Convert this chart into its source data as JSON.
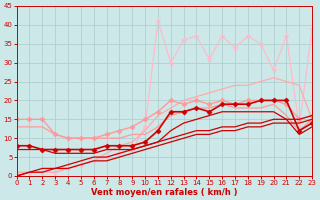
{
  "background_color": "#cde8e8",
  "grid_color": "#aacccc",
  "xlabel": "Vent moyen/en rafales ( km/h )",
  "xlabel_color": "#cc0000",
  "tick_color": "#cc0000",
  "xlim": [
    0,
    23
  ],
  "ylim": [
    0,
    45
  ],
  "yticks": [
    0,
    5,
    10,
    15,
    20,
    25,
    30,
    35,
    40,
    45
  ],
  "xticks": [
    0,
    1,
    2,
    3,
    4,
    5,
    6,
    7,
    8,
    9,
    10,
    11,
    12,
    13,
    14,
    15,
    16,
    17,
    18,
    19,
    20,
    21,
    22,
    23
  ],
  "series": [
    {
      "x": [
        0,
        1,
        2,
        3,
        4,
        5,
        6,
        7,
        8,
        9,
        10,
        11,
        12,
        13,
        14,
        15,
        16,
        17,
        18,
        19,
        20,
        21,
        22,
        23
      ],
      "y": [
        1,
        1,
        1,
        1,
        2,
        3,
        4,
        5,
        6,
        7,
        13,
        41,
        30,
        36,
        37,
        31,
        37,
        34,
        37,
        35,
        28,
        37,
        13,
        39
      ],
      "color": "#ffbbcc",
      "lw": 0.9,
      "marker": "*",
      "ms": 3.5
    },
    {
      "x": [
        0,
        1,
        2,
        3,
        4,
        5,
        6,
        7,
        8,
        9,
        10,
        11,
        12,
        13,
        14,
        15,
        16,
        17,
        18,
        19,
        20,
        21,
        22,
        23
      ],
      "y": [
        1,
        1,
        1,
        1,
        2,
        3,
        4,
        6,
        8,
        9,
        12,
        16,
        18,
        20,
        21,
        22,
        23,
        24,
        24,
        25,
        26,
        25,
        24,
        15
      ],
      "color": "#ffaaaa",
      "lw": 0.9,
      "marker": null,
      "ms": 2
    },
    {
      "x": [
        0,
        1,
        2,
        3,
        4,
        5,
        6,
        7,
        8,
        9,
        10,
        11,
        12,
        13,
        14,
        15,
        16,
        17,
        18,
        19,
        20,
        21,
        22,
        23
      ],
      "y": [
        15,
        15,
        15,
        11,
        10,
        10,
        10,
        11,
        12,
        13,
        15,
        17,
        20,
        19,
        20,
        19,
        20,
        19,
        20,
        20,
        20,
        19,
        15,
        16
      ],
      "color": "#ff9999",
      "lw": 1.0,
      "marker": "D",
      "ms": 2.5
    },
    {
      "x": [
        0,
        1,
        2,
        3,
        4,
        5,
        6,
        7,
        8,
        9,
        10,
        11,
        12,
        13,
        14,
        15,
        16,
        17,
        18,
        19,
        20,
        21,
        22,
        23
      ],
      "y": [
        13,
        13,
        13,
        11,
        10,
        10,
        10,
        10,
        10,
        11,
        11,
        13,
        16,
        17,
        18,
        18,
        19,
        18,
        18,
        18,
        19,
        16,
        12,
        15
      ],
      "color": "#ff9999",
      "lw": 0.9,
      "marker": null,
      "ms": 2
    },
    {
      "x": [
        0,
        1,
        2,
        3,
        4,
        5,
        6,
        7,
        8,
        9,
        10,
        11,
        12,
        13,
        14,
        15,
        16,
        17,
        18,
        19,
        20,
        21,
        22,
        23
      ],
      "y": [
        8,
        8,
        7,
        7,
        7,
        7,
        7,
        8,
        8,
        8,
        9,
        12,
        17,
        17,
        18,
        17,
        19,
        19,
        19,
        20,
        20,
        20,
        12,
        14
      ],
      "color": "#cc0000",
      "lw": 1.2,
      "marker": "D",
      "ms": 2.5
    },
    {
      "x": [
        0,
        1,
        2,
        3,
        4,
        5,
        6,
        7,
        8,
        9,
        10,
        11,
        12,
        13,
        14,
        15,
        16,
        17,
        18,
        19,
        20,
        21,
        22,
        23
      ],
      "y": [
        7,
        7,
        7,
        6,
        6,
        6,
        6,
        7,
        7,
        7,
        8,
        9,
        12,
        14,
        15,
        16,
        17,
        17,
        17,
        17,
        17,
        15,
        11,
        13
      ],
      "color": "#cc0000",
      "lw": 0.9,
      "marker": null,
      "ms": 2
    },
    {
      "x": [
        0,
        1,
        2,
        3,
        4,
        5,
        6,
        7,
        8,
        9,
        10,
        11,
        12,
        13,
        14,
        15,
        16,
        17,
        18,
        19,
        20,
        21,
        22,
        23
      ],
      "y": [
        0,
        1,
        2,
        2,
        3,
        4,
        5,
        5,
        6,
        7,
        8,
        9,
        10,
        11,
        12,
        12,
        13,
        13,
        14,
        14,
        15,
        15,
        15,
        16
      ],
      "color": "#cc0000",
      "lw": 0.9,
      "marker": null,
      "ms": 2
    },
    {
      "x": [
        0,
        1,
        2,
        3,
        4,
        5,
        6,
        7,
        8,
        9,
        10,
        11,
        12,
        13,
        14,
        15,
        16,
        17,
        18,
        19,
        20,
        21,
        22,
        23
      ],
      "y": [
        0,
        1,
        1,
        2,
        2,
        3,
        4,
        4,
        5,
        6,
        7,
        8,
        9,
        10,
        11,
        11,
        12,
        12,
        13,
        13,
        14,
        14,
        14,
        15
      ],
      "color": "#cc0000",
      "lw": 0.9,
      "marker": null,
      "ms": 2
    }
  ]
}
